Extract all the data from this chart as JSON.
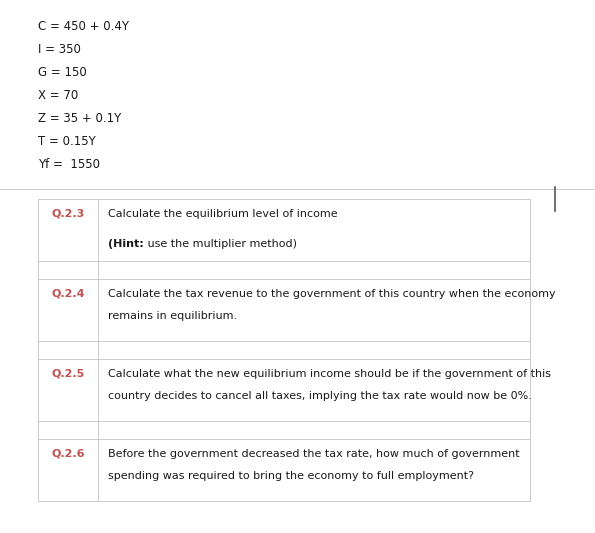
{
  "bg_color": "#ffffff",
  "text_color": "#1a1a1a",
  "orange_color": "#c0504d",
  "equations": [
    "C = 450 + 0.4Y",
    "I = 350",
    "G = 150",
    "X = 70",
    "Z = 35 + 0.1Y",
    "T = 0.15Y",
    "Yf =  1550"
  ],
  "questions": [
    {
      "number": "Q.2.3",
      "line1": "Calculate the equilibrium level of income",
      "hint": "(Hint: use the multiplier method)",
      "has_hint": true,
      "has_gap_row": true
    },
    {
      "number": "Q.2.4",
      "line1": "Calculate the tax revenue to the government of this country when the economy",
      "line2": "remains in equilibrium.",
      "has_hint": false,
      "has_gap_row": true
    },
    {
      "number": "Q.2.5",
      "line1": "Calculate what the new equilibrium income should be if the government of this",
      "line2": "country decides to cancel all taxes, implying the tax rate would now be 0%.",
      "has_hint": false,
      "has_gap_row": true
    },
    {
      "number": "Q.2.6",
      "line1": "Before the government decreased the tax rate, how much of government",
      "line2": "spending was required to bring the economy to full employment?",
      "has_hint": false,
      "has_gap_row": false
    }
  ],
  "fig_width": 5.95,
  "fig_height": 5.33,
  "dpi": 100
}
